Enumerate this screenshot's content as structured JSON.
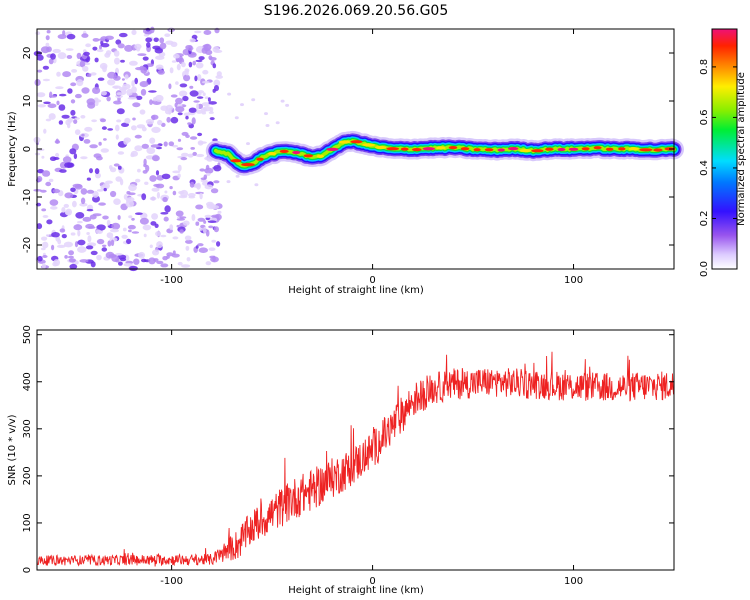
{
  "title": "S196.2026.069.20.56.G05",
  "colors": {
    "snr_line": "#ee2222",
    "frame": "#000000",
    "colormap": [
      "#ffffff",
      "#9955ee",
      "#3311ff",
      "#00ddff",
      "#00ee33",
      "#ffee00",
      "#ff2200",
      "#ee1177"
    ]
  },
  "chart_data": [
    {
      "type": "heatmap",
      "name": "spectrogram",
      "xlabel": "Height of straight line (km)",
      "ylabel": "Frequency (Hz)",
      "xlim": [
        -167,
        150
      ],
      "ylim": [
        -25,
        25
      ],
      "xticks": [
        -100,
        0,
        100
      ],
      "xtick_labels": [
        "-100",
        "0",
        "100"
      ],
      "yticks": [
        -20,
        -10,
        0,
        10,
        20
      ],
      "ytick_labels": [
        "-20",
        "-10",
        "0",
        "10",
        "20"
      ],
      "noise_region_x": [
        -167,
        -76
      ],
      "ridge": {
        "x": [
          -78,
          -72,
          -68,
          -64,
          -60,
          -56,
          -52,
          -48,
          -44,
          -40,
          -36,
          -32,
          -28,
          -24,
          -20,
          -16,
          -12,
          -8,
          -4,
          0,
          10,
          20,
          30,
          40,
          50,
          60,
          70,
          80,
          90,
          100,
          110,
          120,
          130,
          140,
          150
        ],
        "y": [
          -0.5,
          -1.0,
          -2.5,
          -3.5,
          -3.2,
          -2.0,
          -1.2,
          -0.8,
          -0.5,
          -0.6,
          -1.0,
          -1.5,
          -1.6,
          -1.2,
          0.0,
          1.0,
          1.6,
          1.5,
          1.0,
          0.6,
          0.0,
          0.0,
          0.2,
          0.3,
          0.0,
          -0.2,
          0.0,
          -0.3,
          0.0,
          0.0,
          0.2,
          0.0,
          0.0,
          -0.2,
          0.0
        ]
      },
      "colorbar": {
        "label": "Normalized spectral amplitude",
        "range": [
          0,
          0.95
        ],
        "ticks": [
          0.0,
          0.2,
          0.4,
          0.6,
          0.8
        ],
        "tick_labels": [
          "0.0",
          "0.2",
          "0.4",
          "0.6",
          "0.8"
        ]
      }
    },
    {
      "type": "line",
      "name": "snr",
      "xlabel": "Height of straight line (km)",
      "ylabel": "SNR (10 * v/v)",
      "xlim": [
        -167,
        150
      ],
      "ylim": [
        0,
        510
      ],
      "xticks": [
        -100,
        0,
        100
      ],
      "xtick_labels": [
        "-100",
        "0",
        "100"
      ],
      "yticks": [
        0,
        100,
        200,
        300,
        400,
        500
      ],
      "ytick_labels": [
        "0",
        "100",
        "200",
        "300",
        "400",
        "500"
      ],
      "trend_x": [
        -167,
        -80,
        -67,
        -60,
        -50,
        -40,
        -30,
        -20,
        -10,
        0,
        10,
        20,
        30,
        40,
        60,
        80,
        100,
        120,
        150
      ],
      "trend_mean": [
        20,
        22,
        55,
        90,
        120,
        150,
        170,
        195,
        220,
        255,
        305,
        360,
        385,
        395,
        400,
        395,
        390,
        388,
        392
      ],
      "trend_spread": [
        14,
        16,
        45,
        50,
        55,
        60,
        60,
        58,
        55,
        55,
        55,
        50,
        45,
        45,
        42,
        42,
        42,
        42,
        42
      ]
    }
  ]
}
